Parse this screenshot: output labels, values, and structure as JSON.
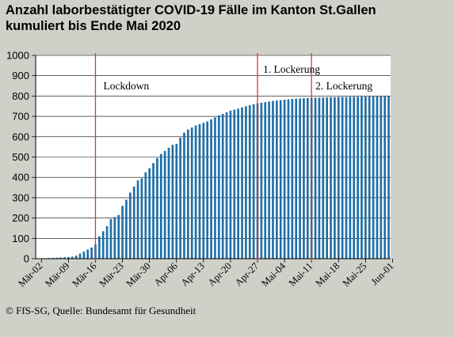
{
  "title_line1": "Anzahl laborbestätigter COVID-19 Fälle im Kanton St.Gallen",
  "title_line2": "kumuliert bis Ende Mai 2020",
  "footer": "© FfS-SG, Quelle: Bundesamt für Gesundheit",
  "colors": {
    "bar": "#1f6fa8",
    "event_line": "#d63a3a",
    "plot_background": "#ffffff",
    "page_background": "#cfd0c7"
  },
  "chart_data": {
    "type": "bar",
    "title": "Anzahl laborbestätigter COVID-19 Fälle im Kanton St.Gallen kumuliert bis Ende Mai 2020",
    "xlabel": "",
    "ylabel": "",
    "ylim": [
      0,
      1000
    ],
    "yticks": [
      0,
      100,
      200,
      300,
      400,
      500,
      600,
      700,
      800,
      900,
      1000
    ],
    "grid": true,
    "start_date": "2020-03-01",
    "xtick_labels": [
      "Mär-02",
      "Mär-09",
      "Mär-16",
      "Mär-23",
      "Mär-30",
      "Apr-06",
      "Apr-13",
      "Apr-20",
      "Apr-27",
      "Mai-04",
      "Mai-11",
      "Mai-18",
      "Mai-25",
      "Jun-01"
    ],
    "values": [
      1,
      2,
      2,
      3,
      4,
      5,
      6,
      7,
      8,
      10,
      15,
      25,
      35,
      45,
      55,
      70,
      110,
      135,
      160,
      195,
      205,
      215,
      260,
      290,
      325,
      355,
      385,
      395,
      425,
      445,
      470,
      495,
      515,
      530,
      545,
      560,
      565,
      595,
      620,
      635,
      645,
      655,
      662,
      668,
      675,
      685,
      695,
      705,
      712,
      720,
      728,
      733,
      738,
      744,
      750,
      755,
      760,
      764,
      767,
      770,
      773,
      776,
      778,
      780,
      782,
      784,
      786,
      787,
      788,
      789,
      790,
      791,
      792,
      792,
      793,
      793,
      794,
      794,
      795,
      795,
      795,
      796,
      796,
      796,
      797,
      797,
      797,
      797,
      798,
      798,
      798,
      798
    ],
    "annotations": [
      {
        "label": "Lockdown",
        "date_index": 15
      },
      {
        "label": "1. Lockerung",
        "date_index": 57
      },
      {
        "label": "2. Lockerung",
        "date_index": 71
      }
    ]
  }
}
